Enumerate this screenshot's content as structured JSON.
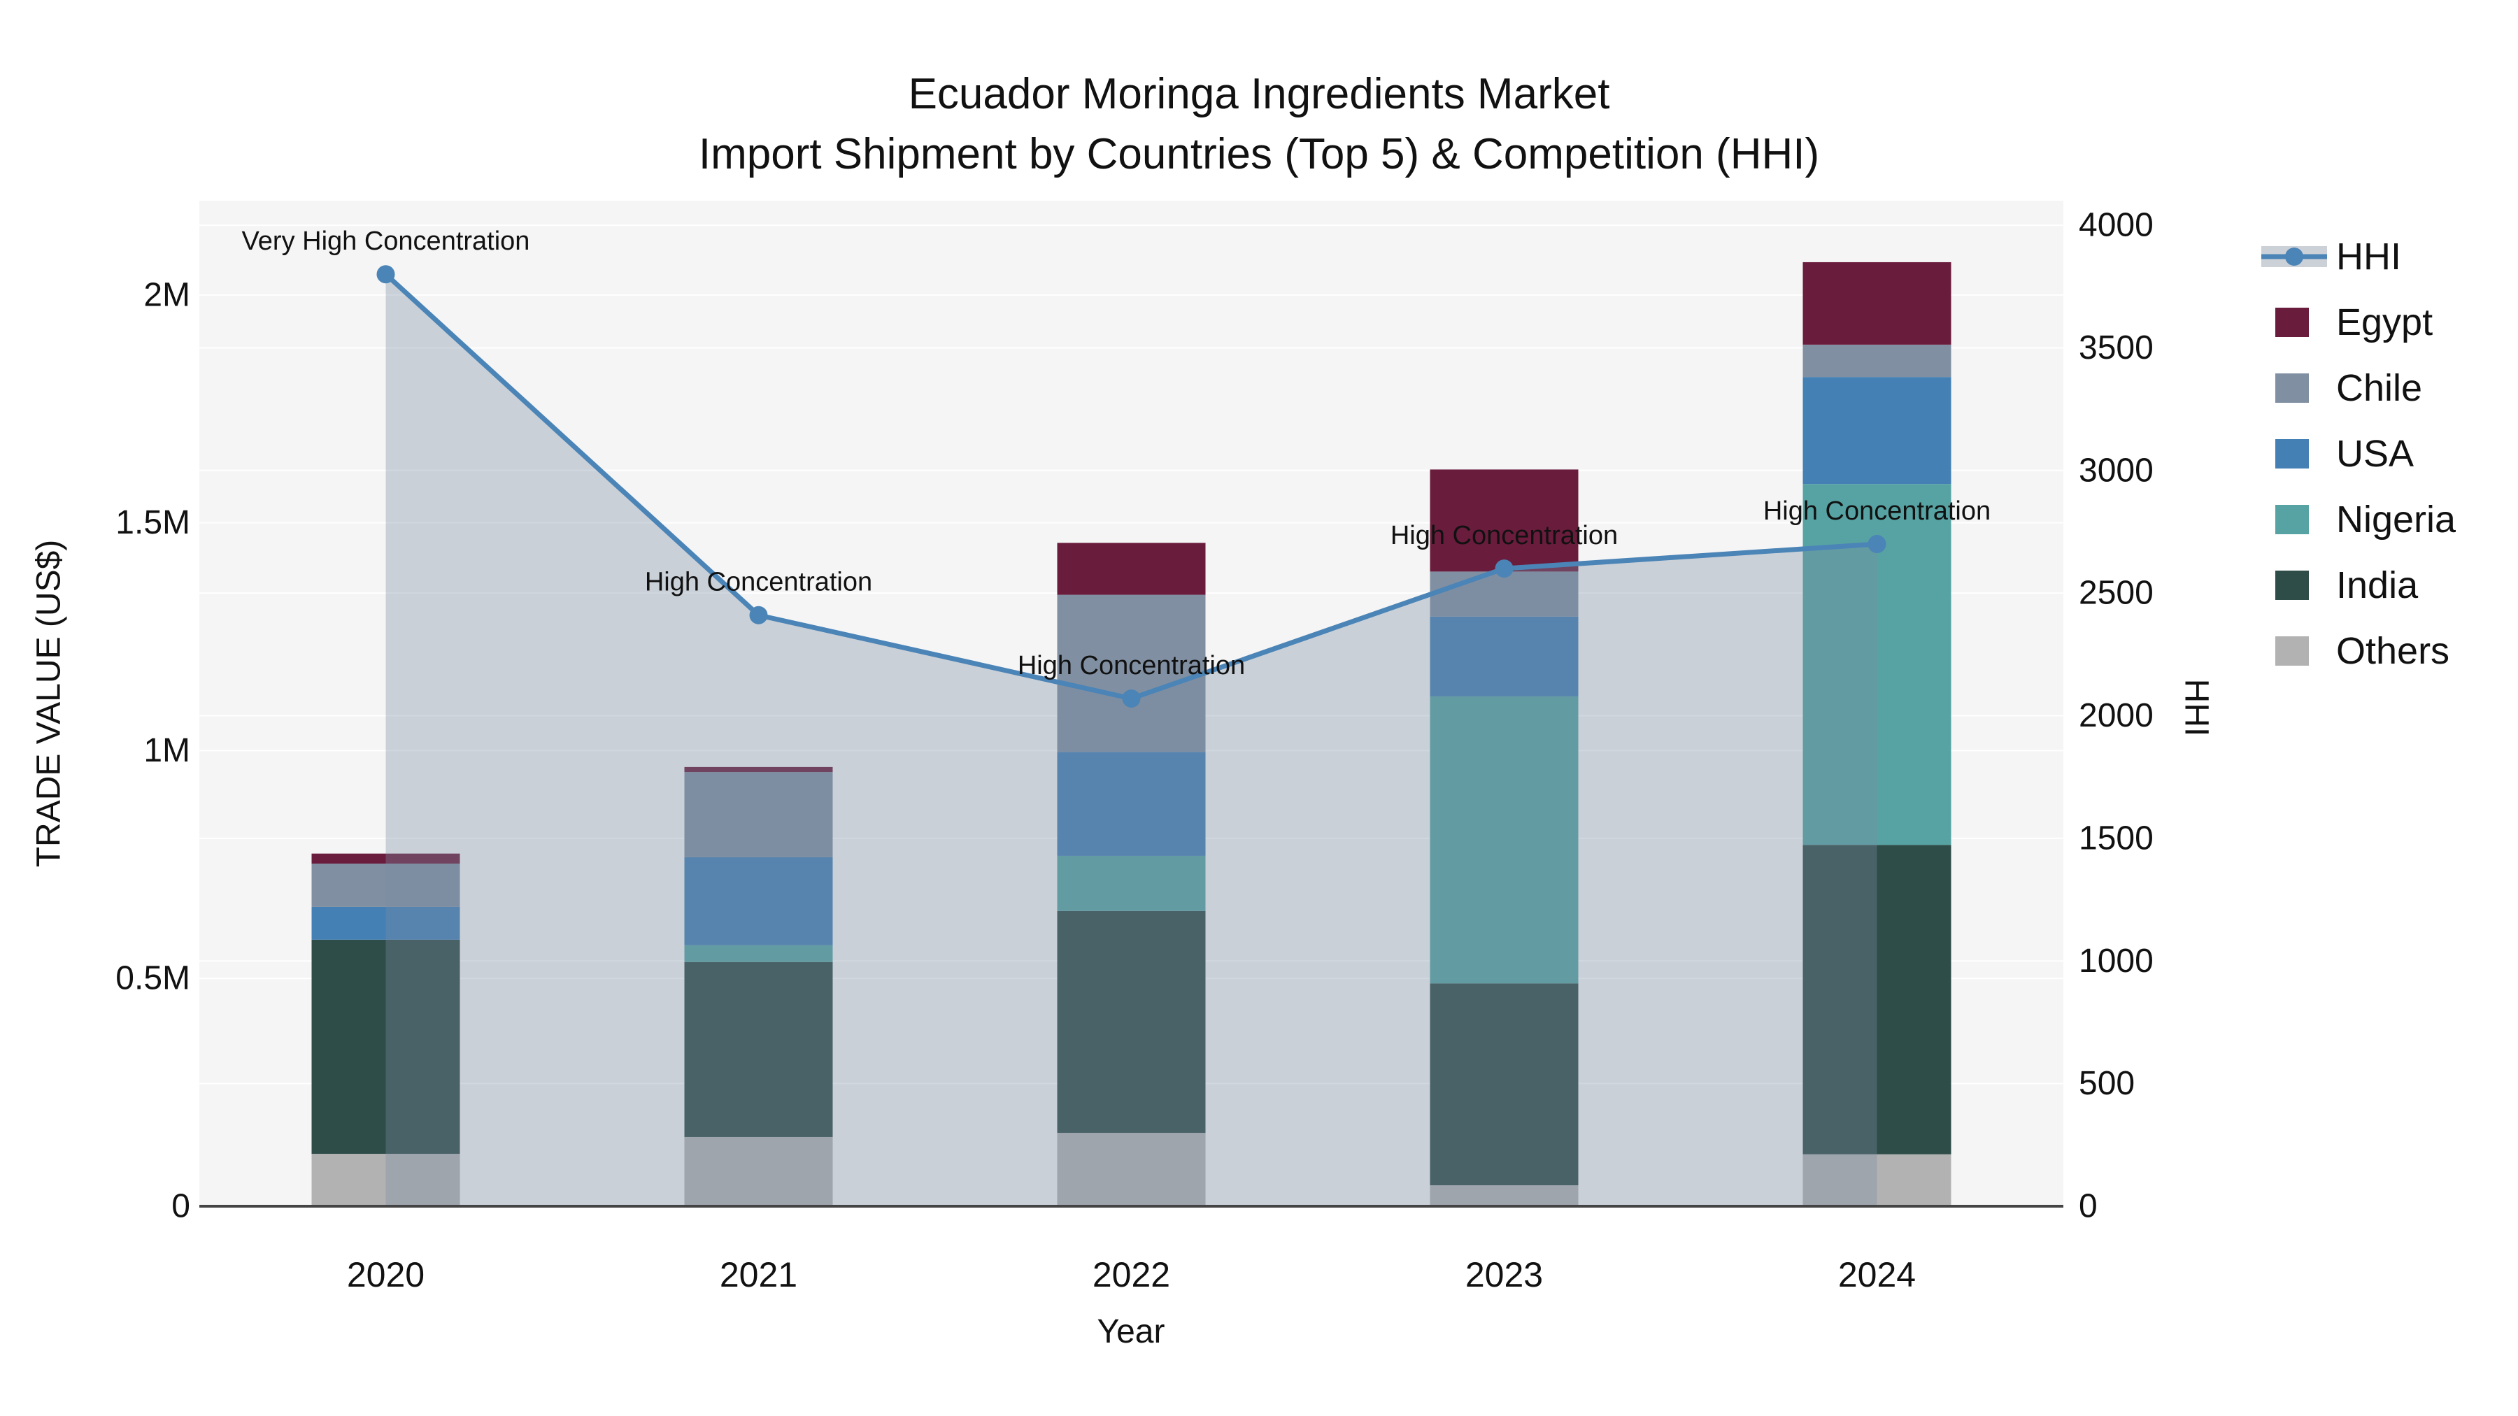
{
  "title": {
    "line1": "Ecuador Moringa Ingredients Market",
    "line2": "Import Shipment by Countries (Top 5) & Competition (HHI)"
  },
  "x_axis": {
    "title": "Year"
  },
  "y_left_axis": {
    "title": "TRADE VALUE (US$)",
    "tick_labels": [
      "0",
      "0.5M",
      "1M",
      "1.5M",
      "2M"
    ],
    "tick_values": [
      0,
      500000,
      1000000,
      1500000,
      2000000
    ]
  },
  "y_right_axis": {
    "title": "HHI",
    "tick_labels": [
      "0",
      "500",
      "1000",
      "1500",
      "2000",
      "2500",
      "3000",
      "3500",
      "4000"
    ],
    "tick_values": [
      0,
      500,
      1000,
      1500,
      2000,
      2500,
      3000,
      3500,
      4000
    ]
  },
  "legend": {
    "position": "right",
    "items": [
      {
        "name": "HHI",
        "type": "line",
        "color": "#4b84b6"
      },
      {
        "name": "Egypt",
        "type": "swatch",
        "color": "#6a1c3c"
      },
      {
        "name": "Chile",
        "type": "swatch",
        "color": "#8090a2"
      },
      {
        "name": "USA",
        "type": "swatch",
        "color": "#4480b4"
      },
      {
        "name": "Nigeria",
        "type": "swatch",
        "color": "#57a3a3"
      },
      {
        "name": "India",
        "type": "swatch",
        "color": "#2e4c48"
      },
      {
        "name": "Others",
        "type": "swatch",
        "color": "#b2b2b2"
      }
    ]
  },
  "chart_data": {
    "type": "bar",
    "subtype": "stacked-bars-with-line-overlay",
    "categories": [
      "2020",
      "2021",
      "2022",
      "2023",
      "2024"
    ],
    "bar_value_unit": "US$",
    "series": [
      {
        "name": "Others",
        "color": "#b2b2b2",
        "values": [
          115000,
          152000,
          161000,
          46000,
          114000
        ]
      },
      {
        "name": "India",
        "color": "#2e4c48",
        "values": [
          470000,
          384000,
          487000,
          443000,
          679000
        ]
      },
      {
        "name": "Nigeria",
        "color": "#57a3a3",
        "values": [
          0,
          37000,
          121000,
          630000,
          792000
        ]
      },
      {
        "name": "USA",
        "color": "#4480b4",
        "values": [
          72000,
          193000,
          228000,
          175000,
          235000
        ]
      },
      {
        "name": "Chile",
        "color": "#8090a2",
        "values": [
          95000,
          187000,
          345000,
          99000,
          71000
        ]
      },
      {
        "name": "Egypt",
        "color": "#6a1c3c",
        "values": [
          22000,
          11000,
          114000,
          224000,
          181000
        ]
      }
    ],
    "line_series": {
      "name": "HHI",
      "axis": "right",
      "color": "#4b84b6",
      "fill_color": "rgba(124,139,162,0.35)",
      "values": [
        3800,
        2410,
        2070,
        2600,
        2700
      ]
    },
    "annotations": [
      {
        "category": "2020",
        "text": "Very High Concentration"
      },
      {
        "category": "2021",
        "text": "High Concentration"
      },
      {
        "category": "2022",
        "text": "High Concentration"
      },
      {
        "category": "2023",
        "text": "High Concentration"
      },
      {
        "category": "2024",
        "text": "High Concentration"
      }
    ],
    "xlabel": "Year",
    "ylabel_left": "TRADE VALUE (US$)",
    "ylabel_right": "HHI",
    "y_left_range": [
      0,
      2207000
    ],
    "y_right_range": [
      0,
      4100
    ],
    "grid": true,
    "plot_background": "#f5f5f5",
    "gridline_color": "#ffffff"
  }
}
